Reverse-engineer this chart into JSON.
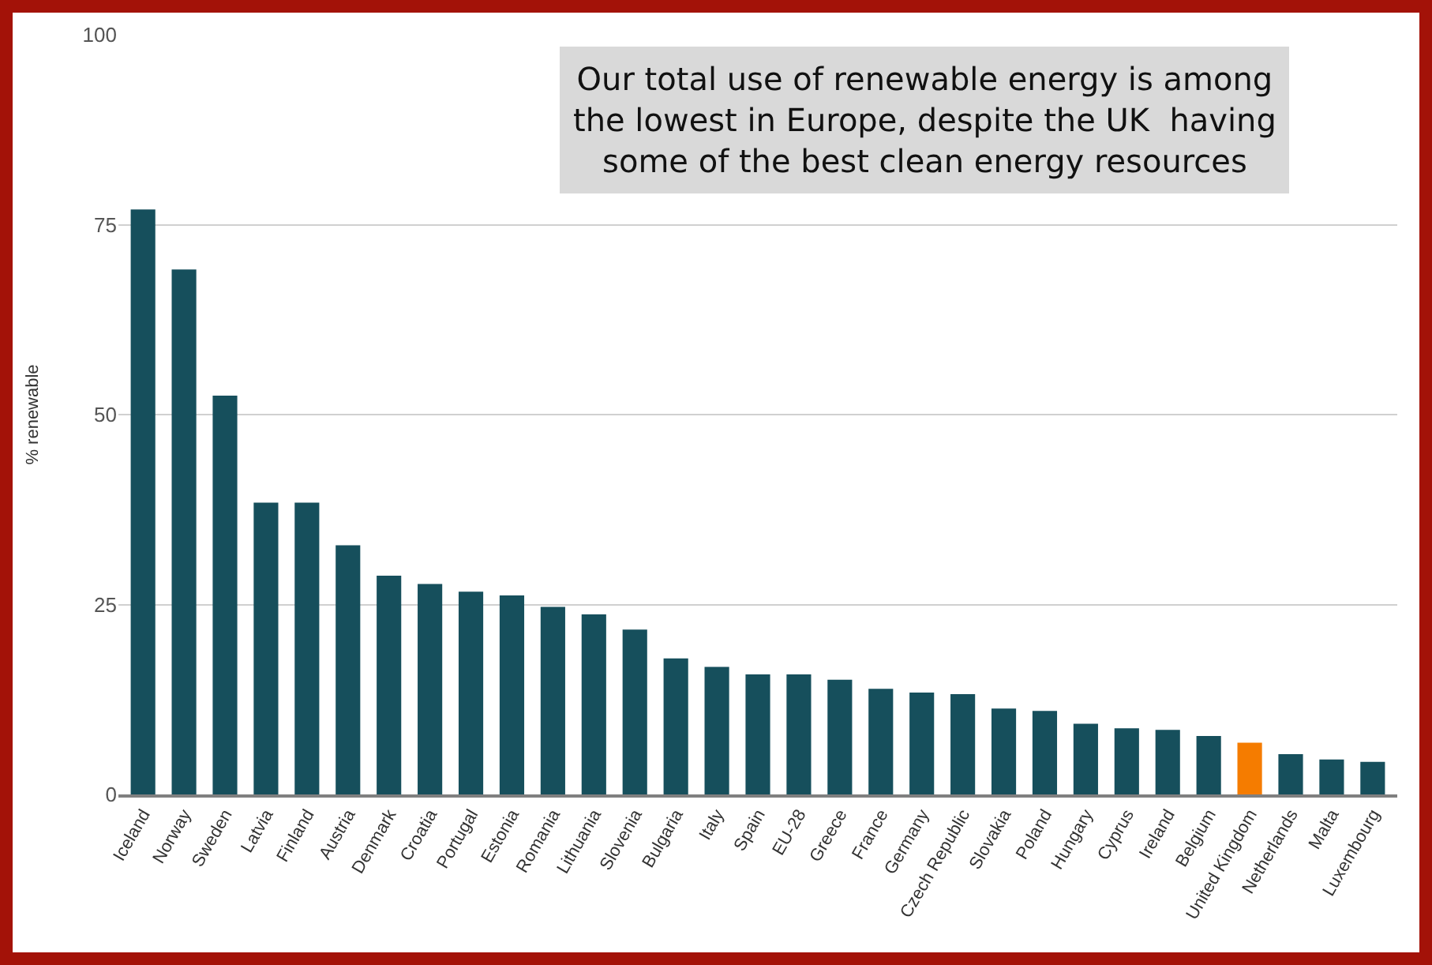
{
  "chart_data": {
    "type": "bar",
    "ylabel": "% renewable",
    "categories": [
      "Iceland",
      "Norway",
      "Sweden",
      "Latvia",
      "Finland",
      "Austria",
      "Denmark",
      "Croatia",
      "Portugal",
      "Estonia",
      "Romania",
      "Lithuania",
      "Slovenia",
      "Bulgaria",
      "Italy",
      "Spain",
      "EU-28",
      "Greece",
      "France",
      "Germany",
      "Czech Republic",
      "Slovakia",
      "Poland",
      "Hungary",
      "Cyprus",
      "Ireland",
      "Belgium",
      "United Kingdom",
      "Netherlands",
      "Malta",
      "Luxembourg"
    ],
    "values": [
      77.0,
      69.1,
      52.5,
      38.4,
      38.4,
      32.8,
      28.8,
      27.7,
      26.7,
      26.2,
      24.7,
      23.7,
      21.7,
      17.9,
      16.8,
      15.8,
      15.8,
      15.1,
      13.9,
      13.4,
      13.2,
      11.3,
      11.0,
      9.3,
      8.7,
      8.5,
      7.7,
      6.8,
      5.3,
      4.6,
      4.3
    ],
    "colors": [
      "#164f5c",
      "#164f5c",
      "#164f5c",
      "#164f5c",
      "#164f5c",
      "#164f5c",
      "#164f5c",
      "#164f5c",
      "#164f5c",
      "#164f5c",
      "#164f5c",
      "#164f5c",
      "#164f5c",
      "#164f5c",
      "#164f5c",
      "#164f5c",
      "#164f5c",
      "#164f5c",
      "#164f5c",
      "#164f5c",
      "#164f5c",
      "#164f5c",
      "#164f5c",
      "#164f5c",
      "#164f5c",
      "#164f5c",
      "#164f5c",
      "#f57c00",
      "#164f5c",
      "#164f5c",
      "#164f5c"
    ],
    "ylim": [
      0,
      100
    ],
    "yticks": [
      0,
      25,
      50,
      75,
      100
    ],
    "grid": "y",
    "annotations": [
      "Our total use of renewable energy is among\nthe lowest in Europe, despite the UK  having\nsome of the best clean energy resources"
    ]
  }
}
